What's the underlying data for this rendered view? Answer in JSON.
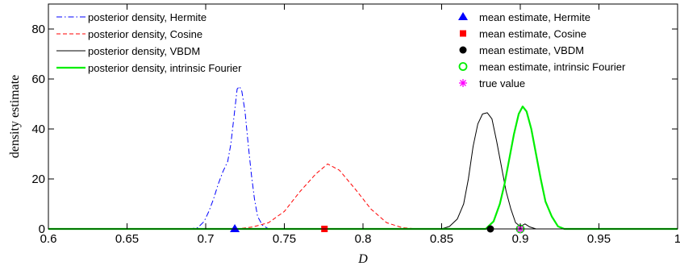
{
  "chart_data": {
    "type": "line",
    "xlabel": "D",
    "ylabel": "density estimate",
    "xlim": [
      0.6,
      1.0
    ],
    "ylim": [
      0,
      90
    ],
    "xticks": [
      "0.6",
      "0.65",
      "0.7",
      "0.75",
      "0.8",
      "0.85",
      "0.9",
      "0.95",
      "1"
    ],
    "xtick_values": [
      0.6,
      0.65,
      0.7,
      0.75,
      0.8,
      0.85,
      0.9,
      0.95,
      1.0
    ],
    "yticks": [
      "0",
      "20",
      "40",
      "60",
      "80"
    ],
    "ytick_values": [
      0,
      20,
      40,
      60,
      80
    ],
    "grid": false,
    "legend_left_placement": "top-left",
    "legend_right_placement": "top-right",
    "series": [
      {
        "name": "posterior density, Hermite",
        "color": "#0000ff",
        "dash": "dashdot",
        "x": [
          0.6,
          0.69,
          0.695,
          0.699,
          0.702,
          0.705,
          0.708,
          0.711,
          0.714,
          0.716,
          0.718,
          0.72,
          0.7215,
          0.723,
          0.725,
          0.727,
          0.729,
          0.731,
          0.733,
          0.736,
          0.74,
          1.0
        ],
        "y": [
          0,
          0,
          0.5,
          3,
          7,
          12,
          18,
          23,
          27,
          34,
          45,
          56,
          57,
          55,
          47,
          34,
          22,
          12,
          5,
          1.5,
          0,
          0
        ]
      },
      {
        "name": "posterior density, Cosine",
        "color": "#ff0000",
        "dash": "dashed",
        "x": [
          0.6,
          0.72,
          0.73,
          0.74,
          0.75,
          0.76,
          0.77,
          0.7775,
          0.785,
          0.795,
          0.805,
          0.815,
          0.825,
          0.835,
          1.0
        ],
        "y": [
          0,
          0,
          0.8,
          2.5,
          7,
          15,
          22,
          26,
          23.5,
          16,
          8,
          2.5,
          0.5,
          0,
          0
        ]
      },
      {
        "name": "posterior density, VBDM",
        "color": "#000000",
        "dash": "solid",
        "x": [
          0.6,
          0.85,
          0.855,
          0.86,
          0.864,
          0.867,
          0.87,
          0.873,
          0.876,
          0.879,
          0.882,
          0.885,
          0.888,
          0.891,
          0.894,
          0.897,
          0.9,
          0.903,
          0.906,
          0.91,
          1.0
        ],
        "y": [
          0,
          0,
          1,
          4,
          10,
          20,
          33,
          42,
          46,
          46.5,
          44,
          35,
          25,
          15,
          8,
          2.5,
          1,
          2,
          0.8,
          0,
          0
        ]
      },
      {
        "name": "posterior density, intrinsic Fourier",
        "color": "#00ee00",
        "dash": "solid-thick",
        "x": [
          0.6,
          0.878,
          0.883,
          0.887,
          0.89,
          0.893,
          0.896,
          0.899,
          0.9015,
          0.904,
          0.907,
          0.91,
          0.913,
          0.916,
          0.92,
          0.924,
          0.928,
          1.0
        ],
        "y": [
          0,
          0,
          3,
          10,
          18,
          28,
          38,
          46,
          49,
          47,
          40,
          30,
          20,
          11,
          5,
          1,
          0,
          0
        ]
      }
    ],
    "markers": [
      {
        "name": "mean estimate, Hermite",
        "color": "#0000ff",
        "shape": "triangle",
        "x": 0.7185,
        "y": 0
      },
      {
        "name": "mean estimate, Cosine",
        "color": "#ff0000",
        "shape": "square",
        "x": 0.7755,
        "y": 0
      },
      {
        "name": "mean estimate, VBDM",
        "color": "#000000",
        "shape": "filled-circle",
        "x": 0.881,
        "y": 0
      },
      {
        "name": "mean estimate, intrinsic Fourier",
        "color": "#00ee00",
        "shape": "open-circle",
        "x": 0.9,
        "y": 0
      },
      {
        "name": "true value",
        "color": "#ff00ff",
        "shape": "asterisk",
        "x": 0.9,
        "y": 0
      }
    ]
  }
}
